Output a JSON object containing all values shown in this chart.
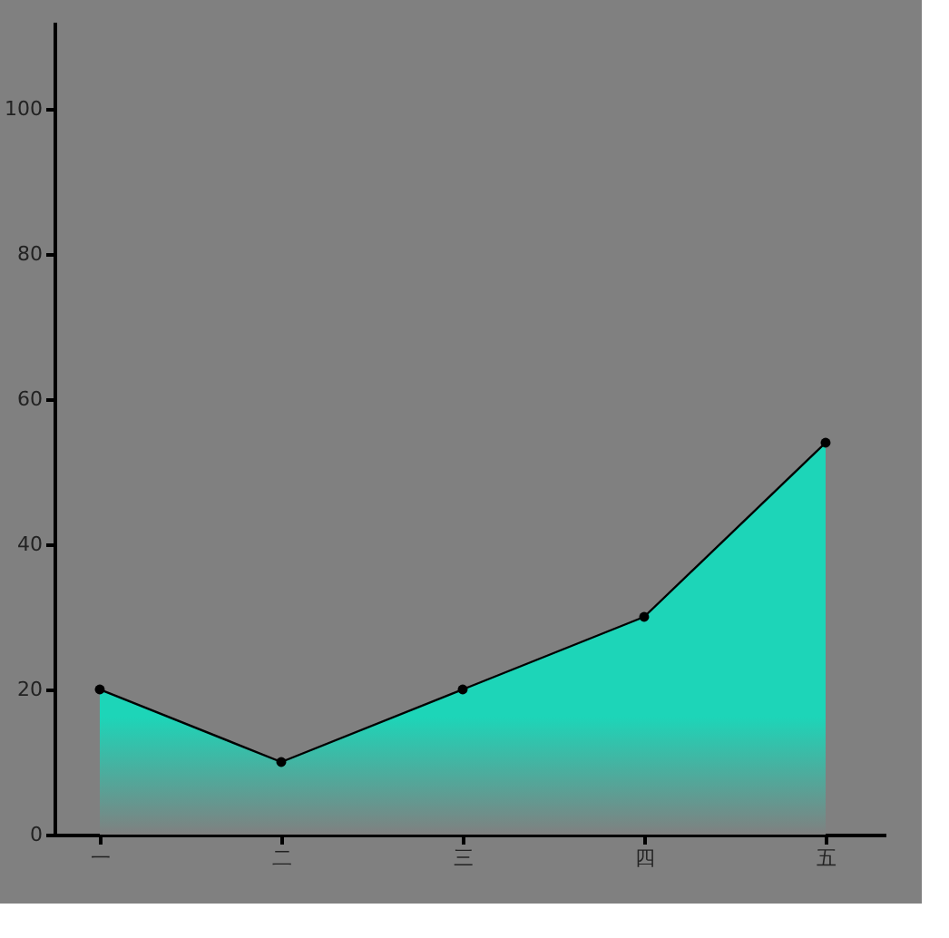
{
  "chart_data": {
    "type": "area",
    "categories": [
      "一",
      "二",
      "三",
      "四",
      "五"
    ],
    "series": [
      {
        "color": "#1dd5b8",
        "values": [
          20,
          10,
          20,
          30,
          54
        ]
      }
    ],
    "ylim": [
      0,
      112
    ],
    "yticks": [
      0,
      20,
      40,
      60,
      80,
      100
    ],
    "grid": false,
    "marker": "circle"
  }
}
